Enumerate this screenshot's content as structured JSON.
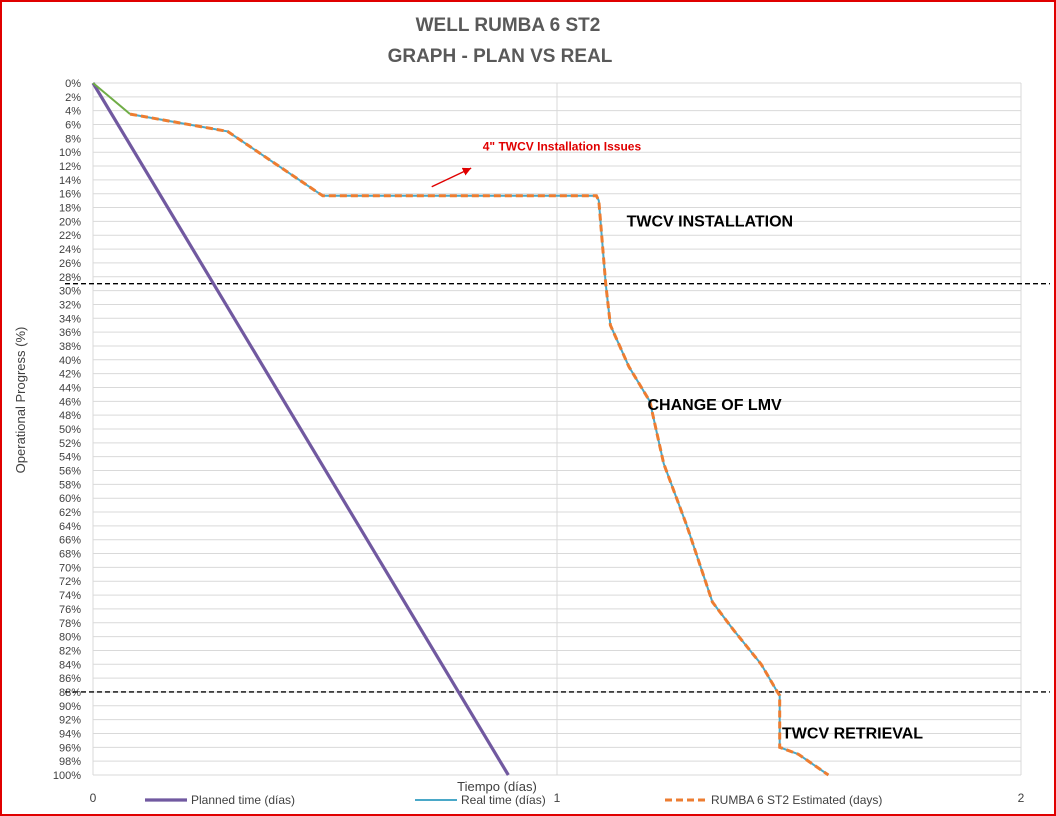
{
  "chart_data": {
    "type": "line",
    "title": [
      "WELL RUMBA 6 ST2",
      "GRAPH  - PLAN VS REAL"
    ],
    "xlabel": "Tiempo (días)",
    "ylabel": "Operational Progress (%)",
    "xlim": [
      0,
      2
    ],
    "ylim": [
      0,
      100
    ],
    "y_reversed": true,
    "x_ticks": [
      "0",
      "1",
      "2"
    ],
    "y_ticks": [
      "0%",
      "2%",
      "4%",
      "6%",
      "8%",
      "10%",
      "12%",
      "14%",
      "16%",
      "18%",
      "20%",
      "22%",
      "24%",
      "26%",
      "28%",
      "30%",
      "32%",
      "34%",
      "36%",
      "38%",
      "40%",
      "42%",
      "44%",
      "46%",
      "48%",
      "50%",
      "52%",
      "54%",
      "56%",
      "58%",
      "60%",
      "62%",
      "64%",
      "66%",
      "68%",
      "70%",
      "72%",
      "74%",
      "76%",
      "78%",
      "80%",
      "82%",
      "84%",
      "86%",
      "88%",
      "90%",
      "92%",
      "94%",
      "96%",
      "98%",
      "100%"
    ],
    "grid": true,
    "legend_position": "bottom",
    "series": [
      {
        "name": "Planned time (días)",
        "color": "#7159a0",
        "style": "solid",
        "x": [
          0,
          0.895
        ],
        "y": [
          0,
          100
        ]
      },
      {
        "name": "Real time (días)",
        "color": "#4aa8c8",
        "style": "solid",
        "x": [
          0,
          0.08,
          0.29,
          0.495,
          1.085,
          1.09,
          1.105,
          1.115,
          1.155,
          1.2,
          1.23,
          1.28,
          1.335,
          1.38,
          1.44,
          1.475,
          1.48,
          1.48,
          1.52,
          1.585
        ],
        "y": [
          0,
          4.5,
          7,
          16.3,
          16.3,
          17,
          29,
          35,
          41,
          46,
          55,
          64,
          75,
          79,
          84,
          88,
          88.5,
          96,
          97,
          100
        ]
      },
      {
        "name": "RUMBA 6 ST2 Estimated (days)",
        "color": "#ed7d31",
        "style": "dashed",
        "x": [
          0.08,
          0.29,
          0.495,
          1.085,
          1.09,
          1.105,
          1.115,
          1.155,
          1.2,
          1.23,
          1.28,
          1.335,
          1.38,
          1.44,
          1.475,
          1.48,
          1.48,
          1.52,
          1.585
        ],
        "y": [
          4.5,
          7,
          16.3,
          16.3,
          17,
          29,
          35,
          41,
          46,
          55,
          64,
          75,
          79,
          84,
          88,
          88.5,
          96,
          97,
          100
        ]
      }
    ],
    "start_segment_color": "#70ad47",
    "reference_lines": [
      {
        "y": 29,
        "style": "dashed",
        "color": "#000000"
      },
      {
        "y": 88,
        "style": "dashed",
        "color": "#000000"
      }
    ],
    "annotations": [
      {
        "text": "4\" TWCV Installation Issues",
        "x": 0.84,
        "y": 9,
        "color": "#e00000",
        "arrow_from": [
          0.73,
          15
        ],
        "arrow_to": [
          0.815,
          12.3
        ]
      },
      {
        "text": "TWCV INSTALLATION",
        "x": 1.15,
        "y": 20,
        "color": "#000000"
      },
      {
        "text": "CHANGE OF LMV",
        "x": 1.195,
        "y": 46.5,
        "color": "#000000"
      },
      {
        "text": "TWCV RETRIEVAL",
        "x": 1.485,
        "y": 94,
        "color": "#000000"
      }
    ]
  }
}
